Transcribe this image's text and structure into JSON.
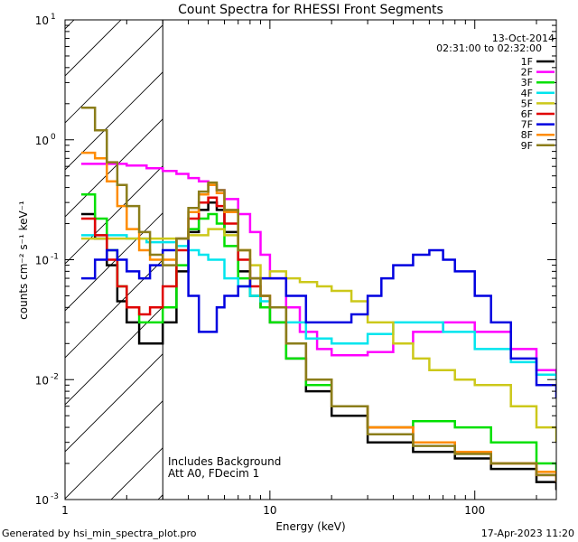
{
  "chart_data": {
    "type": "line",
    "title": "Count Spectra for RHESSI Front Segments",
    "xlabel": "Energy (keV)",
    "ylabel": "counts cm⁻² s⁻¹ keV⁻¹",
    "x_scale": "log",
    "y_scale": "log",
    "xlim": [
      1,
      250
    ],
    "ylim": [
      0.001,
      10
    ],
    "x_ticks": [
      {
        "value": 10,
        "label": "10"
      },
      {
        "value": 100,
        "label": "100"
      }
    ],
    "x_tick_start_label": "1",
    "y_ticks": [
      {
        "value": 0.001,
        "base": "10",
        "exp": "-3"
      },
      {
        "value": 0.01,
        "base": "10",
        "exp": "-2"
      },
      {
        "value": 0.1,
        "base": "10",
        "exp": "-1"
      },
      {
        "value": 1,
        "base": "10",
        "exp": "0"
      },
      {
        "value": 10,
        "base": "10",
        "exp": "1"
      }
    ],
    "date": "13-Oct-2014",
    "time_range": "02:31:00 to 02:32:00",
    "excluded_region": [
      1,
      3
    ],
    "annotations": [
      "Includes Background",
      "Att A0, FDecim 1"
    ],
    "series": [
      {
        "name": "1F",
        "color": "#000000",
        "x": [
          1.2,
          1.4,
          1.6,
          1.8,
          2.0,
          2.3,
          2.6,
          3.0,
          3.5,
          4.0,
          4.5,
          5.0,
          5.5,
          6.0,
          7.0,
          8.0,
          9.0,
          10,
          12,
          15,
          20,
          30,
          50,
          80,
          120,
          200,
          250
        ],
        "y": [
          0.24,
          0.15,
          0.09,
          0.045,
          0.03,
          0.02,
          0.02,
          0.03,
          0.08,
          0.17,
          0.26,
          0.3,
          0.26,
          0.17,
          0.08,
          0.05,
          0.04,
          0.03,
          0.015,
          0.008,
          0.005,
          0.003,
          0.0025,
          0.0022,
          0.0018,
          0.0014,
          0.0012
        ]
      },
      {
        "name": "2F",
        "color": "#ff00ff",
        "x": [
          1.2,
          1.5,
          2.0,
          2.5,
          3.0,
          3.5,
          4.0,
          4.5,
          5.0,
          5.5,
          6.0,
          7.0,
          8.0,
          9.0,
          10,
          12,
          14,
          17,
          20,
          25,
          30,
          40,
          50,
          70,
          100,
          150,
          200,
          250
        ],
        "y": [
          0.63,
          0.63,
          0.61,
          0.58,
          0.55,
          0.52,
          0.48,
          0.45,
          0.42,
          0.38,
          0.32,
          0.24,
          0.17,
          0.11,
          0.07,
          0.04,
          0.025,
          0.018,
          0.016,
          0.016,
          0.017,
          0.02,
          0.025,
          0.03,
          0.025,
          0.018,
          0.012,
          0.01
        ]
      },
      {
        "name": "3F",
        "color": "#00e000",
        "x": [
          1.2,
          1.4,
          1.6,
          1.8,
          2.0,
          2.3,
          2.6,
          3.0,
          3.5,
          4.0,
          4.5,
          5.0,
          5.5,
          6.0,
          7.0,
          8.0,
          9.0,
          10,
          12,
          15,
          20,
          30,
          50,
          80,
          120,
          200,
          250
        ],
        "y": [
          0.35,
          0.22,
          0.12,
          0.06,
          0.04,
          0.03,
          0.03,
          0.04,
          0.09,
          0.18,
          0.22,
          0.24,
          0.2,
          0.13,
          0.07,
          0.05,
          0.04,
          0.03,
          0.015,
          0.009,
          0.006,
          0.004,
          0.0045,
          0.004,
          0.003,
          0.002,
          0.0017
        ]
      },
      {
        "name": "4F",
        "color": "#00e5ee",
        "x": [
          1.2,
          1.5,
          2.0,
          2.5,
          3.0,
          3.5,
          4.0,
          4.5,
          5.0,
          6.0,
          7.0,
          8.0,
          9.0,
          10,
          12,
          15,
          20,
          30,
          40,
          50,
          70,
          100,
          150,
          200,
          250
        ],
        "y": [
          0.16,
          0.16,
          0.15,
          0.14,
          0.14,
          0.13,
          0.12,
          0.11,
          0.1,
          0.07,
          0.06,
          0.05,
          0.045,
          0.04,
          0.03,
          0.022,
          0.02,
          0.024,
          0.03,
          0.03,
          0.025,
          0.018,
          0.014,
          0.011,
          0.01
        ]
      },
      {
        "name": "5F",
        "color": "#ccc81a",
        "x": [
          1.2,
          1.5,
          2.0,
          2.5,
          3.0,
          3.5,
          4.0,
          5.0,
          6.0,
          7.0,
          8.0,
          9.0,
          10,
          12,
          14,
          17,
          20,
          25,
          30,
          40,
          50,
          60,
          80,
          100,
          150,
          200,
          250
        ],
        "y": [
          0.15,
          0.15,
          0.15,
          0.15,
          0.15,
          0.15,
          0.16,
          0.18,
          0.16,
          0.12,
          0.09,
          0.07,
          0.08,
          0.07,
          0.065,
          0.06,
          0.055,
          0.045,
          0.03,
          0.02,
          0.015,
          0.012,
          0.01,
          0.009,
          0.006,
          0.004,
          0.003
        ]
      },
      {
        "name": "6F",
        "color": "#e00000",
        "x": [
          1.2,
          1.4,
          1.6,
          1.8,
          2.0,
          2.3,
          2.6,
          3.0,
          3.5,
          4.0,
          4.5,
          5.0,
          5.5,
          6.0,
          7.0,
          8.0,
          9.0,
          10,
          12,
          15,
          20,
          30,
          50,
          80,
          120,
          200,
          250
        ],
        "y": [
          0.22,
          0.16,
          0.1,
          0.06,
          0.04,
          0.035,
          0.04,
          0.06,
          0.12,
          0.22,
          0.3,
          0.33,
          0.28,
          0.2,
          0.1,
          0.06,
          0.05,
          0.04,
          0.02,
          0.01,
          0.006,
          0.004,
          0.003,
          0.0025,
          0.002,
          0.0016,
          0.0014
        ]
      },
      {
        "name": "7F",
        "color": "#0000e0",
        "x": [
          1.2,
          1.4,
          1.6,
          1.8,
          2.0,
          2.3,
          2.6,
          3.0,
          3.5,
          4.0,
          4.5,
          5.0,
          5.5,
          6.0,
          7.0,
          8.0,
          10,
          12,
          15,
          20,
          25,
          30,
          35,
          40,
          50,
          60,
          70,
          80,
          100,
          120,
          150,
          200,
          250
        ],
        "y": [
          0.07,
          0.1,
          0.12,
          0.1,
          0.08,
          0.07,
          0.09,
          0.12,
          0.15,
          0.05,
          0.025,
          0.025,
          0.04,
          0.05,
          0.06,
          0.07,
          0.07,
          0.05,
          0.03,
          0.03,
          0.035,
          0.05,
          0.07,
          0.09,
          0.11,
          0.12,
          0.1,
          0.08,
          0.05,
          0.03,
          0.015,
          0.009,
          0.007
        ]
      },
      {
        "name": "8F",
        "color": "#ff8c00",
        "x": [
          1.2,
          1.4,
          1.6,
          1.8,
          2.0,
          2.3,
          2.6,
          3.0,
          3.5,
          4.0,
          4.5,
          5.0,
          5.5,
          6.0,
          7.0,
          8.0,
          9.0,
          10,
          12,
          15,
          20,
          30,
          50,
          80,
          120,
          200,
          250
        ],
        "y": [
          0.78,
          0.7,
          0.45,
          0.28,
          0.18,
          0.12,
          0.1,
          0.1,
          0.15,
          0.25,
          0.35,
          0.42,
          0.36,
          0.25,
          0.12,
          0.07,
          0.05,
          0.04,
          0.02,
          0.01,
          0.006,
          0.004,
          0.003,
          0.0025,
          0.002,
          0.0017,
          0.0015
        ]
      },
      {
        "name": "9F",
        "color": "#8b7d1a",
        "x": [
          1.2,
          1.4,
          1.6,
          1.8,
          2.0,
          2.3,
          2.6,
          3.0,
          3.5,
          4.0,
          4.5,
          5.0,
          5.5,
          6.0,
          7.0,
          8.0,
          9.0,
          10,
          12,
          15,
          20,
          30,
          50,
          80,
          120,
          200,
          250
        ],
        "y": [
          1.85,
          1.2,
          0.65,
          0.42,
          0.28,
          0.17,
          0.11,
          0.09,
          0.15,
          0.27,
          0.37,
          0.44,
          0.38,
          0.26,
          0.12,
          0.07,
          0.05,
          0.04,
          0.02,
          0.01,
          0.006,
          0.0035,
          0.0028,
          0.0024,
          0.002,
          0.0016,
          0.0014
        ]
      }
    ]
  },
  "footer": {
    "left": "Generated by hsi_min_spectra_plot.pro",
    "right": "17-Apr-2023 11:20"
  }
}
